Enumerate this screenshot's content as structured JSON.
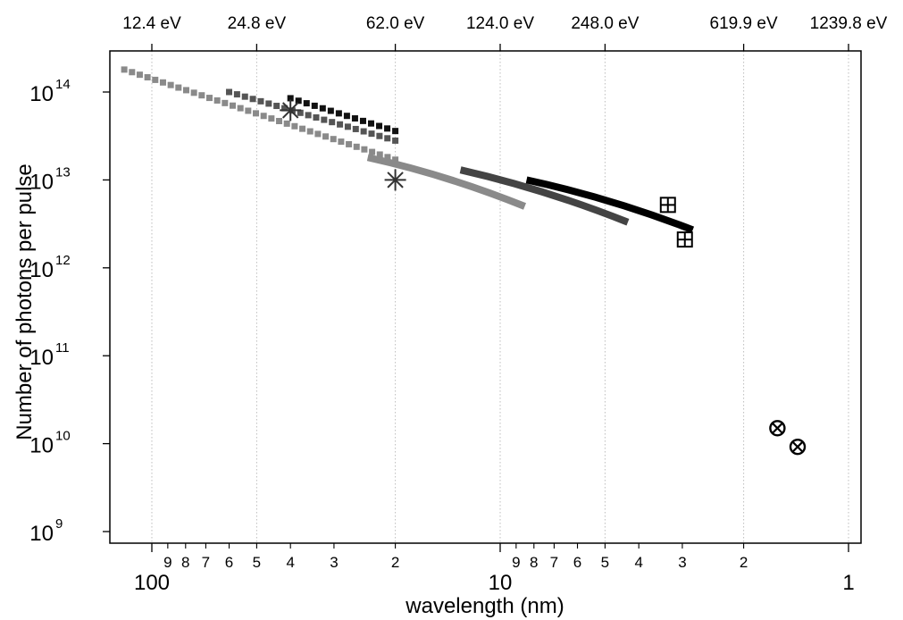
{
  "chart_data": {
    "type": "scatter",
    "title": "",
    "xlabel": "wavelength (nm)",
    "ylabel": "Number of photons per pulse",
    "x_scale": "log",
    "x_reversed": true,
    "y_scale": "log",
    "xlim": [
      130,
      0.8
    ],
    "ylim": [
      600000000.0,
      260000000000000.0
    ],
    "grid": "vertical dotted lines at top-axis ticks",
    "bottom_ticks": {
      "major": [
        {
          "value": 100,
          "label": "100"
        },
        {
          "value": 10,
          "label": "10"
        },
        {
          "value": 1,
          "label": "1"
        }
      ],
      "minor": [
        {
          "value": 90,
          "label": "9"
        },
        {
          "value": 80,
          "label": "8"
        },
        {
          "value": 70,
          "label": "7"
        },
        {
          "value": 60,
          "label": "6"
        },
        {
          "value": 50,
          "label": "5"
        },
        {
          "value": 40,
          "label": "4"
        },
        {
          "value": 30,
          "label": "3"
        },
        {
          "value": 20,
          "label": "2"
        },
        {
          "value": 9,
          "label": "9"
        },
        {
          "value": 8,
          "label": "8"
        },
        {
          "value": 7,
          "label": "7"
        },
        {
          "value": 6,
          "label": "6"
        },
        {
          "value": 5,
          "label": "5"
        },
        {
          "value": 4,
          "label": "4"
        },
        {
          "value": 3,
          "label": "3"
        },
        {
          "value": 2,
          "label": "2"
        }
      ]
    },
    "top_ticks": [
      {
        "value": 100,
        "label": "12.4 eV"
      },
      {
        "value": 50,
        "label": "24.8 eV"
      },
      {
        "value": 20,
        "label": "62.0 eV"
      },
      {
        "value": 10,
        "label": "124.0 eV"
      },
      {
        "value": 5,
        "label": "248.0 eV"
      },
      {
        "value": 2,
        "label": "619.9 eV"
      },
      {
        "value": 1,
        "label": "1239.8 eV"
      }
    ],
    "left_ticks": [
      {
        "exponent": 9,
        "base": "10",
        "sup": "9"
      },
      {
        "exponent": 10,
        "base": "10",
        "sup": "10"
      },
      {
        "exponent": 11,
        "base": "10",
        "sup": "11"
      },
      {
        "exponent": 12,
        "base": "10",
        "sup": "12"
      },
      {
        "exponent": 13,
        "base": "10",
        "sup": "13"
      },
      {
        "exponent": 14,
        "base": "10",
        "sup": "14"
      }
    ],
    "series": [
      {
        "style": "squares",
        "color": "#8a8a8a",
        "x_range": [
          120,
          20
        ],
        "y_range": [
          180000000000000.0,
          17000000000000.0
        ],
        "count": 36
      },
      {
        "style": "squares",
        "color": "#555555",
        "x_range": [
          60,
          20
        ],
        "y_range": [
          100000000000000.0,
          28000000000000.0
        ],
        "count": 22
      },
      {
        "style": "squares",
        "color": "#111111",
        "x_range": [
          40,
          20
        ],
        "y_range": [
          85000000000000.0,
          36000000000000.0
        ],
        "count": 14
      },
      {
        "style": "thick-line",
        "color": "#8a8a8a",
        "x_range": [
          24,
          8.5
        ],
        "y_range": [
          18000000000000.0,
          5000000000000.0
        ]
      },
      {
        "style": "thick-line",
        "color": "#444444",
        "x_range": [
          13,
          4.3
        ],
        "y_range": [
          13000000000000.0,
          3300000000000.0
        ]
      },
      {
        "style": "thick-line",
        "color": "#000000",
        "x_range": [
          8.4,
          2.8
        ],
        "y_range": [
          10000000000000.0,
          2700000000000.0
        ]
      },
      {
        "style": "asterisk",
        "color": "#333333",
        "points": [
          [
            40,
            62000000000000.0
          ],
          [
            20,
            10000000000000.0
          ]
        ]
      },
      {
        "style": "boxplus",
        "color": "#000000",
        "points": [
          [
            3.3,
            5200000000000.0
          ],
          [
            2.95,
            2100000000000.0
          ]
        ]
      },
      {
        "style": "circletimes",
        "color": "#000000",
        "points": [
          [
            1.6,
            15000000000.0
          ],
          [
            1.4,
            9200000000.0
          ]
        ]
      }
    ]
  }
}
